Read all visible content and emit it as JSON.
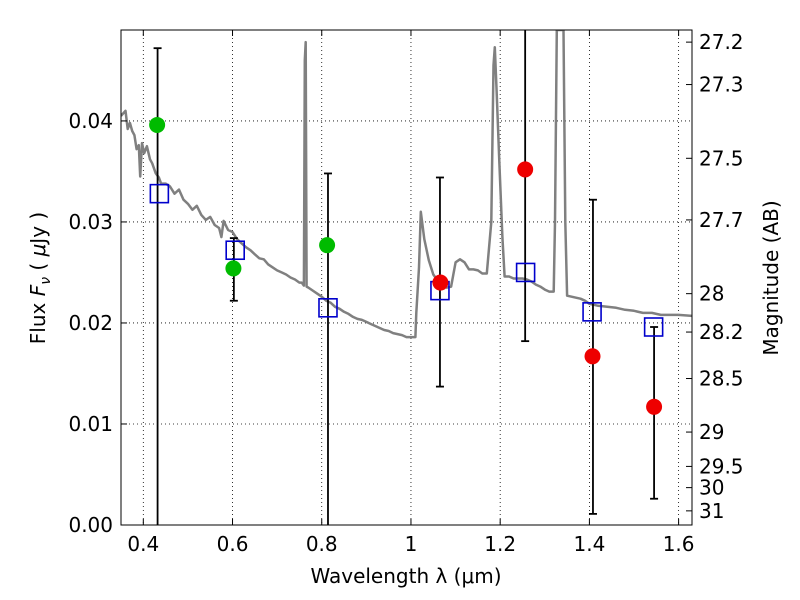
{
  "chart_data": {
    "type": "scatter",
    "title": "",
    "xlabel": "Wavelength  λ (μm)",
    "ylabel": "Flux  F_ν  ( μJy )",
    "y2label": "Magnitude (AB)",
    "xlim": [
      0.35,
      1.63
    ],
    "ylim": [
      0.0,
      0.049
    ],
    "grid": true,
    "x_ticks": [
      0.4,
      0.6,
      0.8,
      1.0,
      1.2,
      1.4,
      1.6
    ],
    "x_tick_labels": [
      "0.4",
      "0.6",
      "0.8",
      "1",
      "1.2",
      "1.4",
      "1.6"
    ],
    "y_ticks": [
      0.0,
      0.01,
      0.02,
      0.03,
      0.04
    ],
    "y_tick_labels": [
      "0.00",
      "0.01",
      "0.02",
      "0.03",
      "0.04"
    ],
    "y2_ticks": [
      {
        "label": "27.2",
        "flux": 0.0478
      },
      {
        "label": "27.3",
        "flux": 0.0436
      },
      {
        "label": "27.5",
        "flux": 0.0363
      },
      {
        "label": "27.7",
        "flux": 0.0302
      },
      {
        "label": "28",
        "flux": 0.0229
      },
      {
        "label": "28.2",
        "flux": 0.0191
      },
      {
        "label": "28.5",
        "flux": 0.0145
      },
      {
        "label": "29",
        "flux": 0.0092
      },
      {
        "label": "29.5",
        "flux": 0.0058
      },
      {
        "label": "30",
        "flux": 0.0037
      },
      {
        "label": "31",
        "flux": 0.0014
      }
    ],
    "series": [
      {
        "kind": "line",
        "color": "#808080",
        "points": [
          [
            0.35,
            0.0405
          ],
          [
            0.36,
            0.041
          ],
          [
            0.365,
            0.0392
          ],
          [
            0.37,
            0.0398
          ],
          [
            0.375,
            0.039
          ],
          [
            0.38,
            0.0386
          ],
          [
            0.385,
            0.0372
          ],
          [
            0.39,
            0.0376
          ],
          [
            0.393,
            0.0345
          ],
          [
            0.397,
            0.0378
          ],
          [
            0.402,
            0.0368
          ],
          [
            0.408,
            0.0375
          ],
          [
            0.415,
            0.0362
          ],
          [
            0.42,
            0.0358
          ],
          [
            0.428,
            0.0348
          ],
          [
            0.435,
            0.0344
          ],
          [
            0.44,
            0.0338
          ],
          [
            0.45,
            0.0338
          ],
          [
            0.46,
            0.0335
          ],
          [
            0.47,
            0.0328
          ],
          [
            0.48,
            0.0332
          ],
          [
            0.49,
            0.0322
          ],
          [
            0.5,
            0.0318
          ],
          [
            0.51,
            0.0312
          ],
          [
            0.52,
            0.0316
          ],
          [
            0.53,
            0.0307
          ],
          [
            0.54,
            0.0302
          ],
          [
            0.55,
            0.0305
          ],
          [
            0.56,
            0.0297
          ],
          [
            0.57,
            0.0294
          ],
          [
            0.575,
            0.0285
          ],
          [
            0.58,
            0.0301
          ],
          [
            0.59,
            0.0292
          ],
          [
            0.6,
            0.029
          ],
          [
            0.61,
            0.0283
          ],
          [
            0.62,
            0.0279
          ],
          [
            0.63,
            0.0275
          ],
          [
            0.64,
            0.0272
          ],
          [
            0.65,
            0.0268
          ],
          [
            0.66,
            0.0264
          ],
          [
            0.67,
            0.0263
          ],
          [
            0.68,
            0.0258
          ],
          [
            0.69,
            0.0255
          ],
          [
            0.7,
            0.0252
          ],
          [
            0.71,
            0.025
          ],
          [
            0.72,
            0.0248
          ],
          [
            0.73,
            0.0245
          ],
          [
            0.74,
            0.0243
          ],
          [
            0.75,
            0.024
          ],
          [
            0.755,
            0.024
          ],
          [
            0.76,
            0.0237
          ],
          [
            0.762,
            0.046
          ],
          [
            0.764,
            0.0478
          ],
          [
            0.766,
            0.0236
          ],
          [
            0.77,
            0.0235
          ],
          [
            0.78,
            0.0232
          ],
          [
            0.79,
            0.0229
          ],
          [
            0.8,
            0.0226
          ],
          [
            0.81,
            0.0222
          ],
          [
            0.82,
            0.022
          ],
          [
            0.83,
            0.0216
          ],
          [
            0.84,
            0.0214
          ],
          [
            0.85,
            0.0211
          ],
          [
            0.86,
            0.0209
          ],
          [
            0.87,
            0.0206
          ],
          [
            0.88,
            0.0204
          ],
          [
            0.89,
            0.0203
          ],
          [
            0.9,
            0.0201
          ],
          [
            0.91,
            0.0199
          ],
          [
            0.92,
            0.0197
          ],
          [
            0.93,
            0.0195
          ],
          [
            0.94,
            0.0193
          ],
          [
            0.95,
            0.0192
          ],
          [
            0.96,
            0.019
          ],
          [
            0.97,
            0.0189
          ],
          [
            0.98,
            0.0188
          ],
          [
            0.99,
            0.0186
          ],
          [
            1.0,
            0.0186
          ],
          [
            1.01,
            0.0186
          ],
          [
            1.012,
            0.021
          ],
          [
            1.018,
            0.0255
          ],
          [
            1.022,
            0.031
          ],
          [
            1.03,
            0.0283
          ],
          [
            1.04,
            0.0262
          ],
          [
            1.05,
            0.0248
          ],
          [
            1.06,
            0.0242
          ],
          [
            1.08,
            0.0235
          ],
          [
            1.09,
            0.0236
          ],
          [
            1.1,
            0.026
          ],
          [
            1.11,
            0.0263
          ],
          [
            1.12,
            0.026
          ],
          [
            1.13,
            0.0253
          ],
          [
            1.14,
            0.0253
          ],
          [
            1.15,
            0.0252
          ],
          [
            1.16,
            0.0249
          ],
          [
            1.17,
            0.0249
          ],
          [
            1.18,
            0.03
          ],
          [
            1.185,
            0.0455
          ],
          [
            1.188,
            0.0473
          ],
          [
            1.192,
            0.043
          ],
          [
            1.198,
            0.036
          ],
          [
            1.205,
            0.0285
          ],
          [
            1.21,
            0.0246
          ],
          [
            1.22,
            0.0246
          ],
          [
            1.23,
            0.0244
          ],
          [
            1.24,
            0.0244
          ],
          [
            1.25,
            0.0244
          ],
          [
            1.26,
            0.0243
          ],
          [
            1.27,
            0.0241
          ],
          [
            1.28,
            0.0238
          ],
          [
            1.29,
            0.0236
          ],
          [
            1.3,
            0.0233
          ],
          [
            1.31,
            0.0231
          ],
          [
            1.32,
            0.0231
          ],
          [
            1.323,
            0.03
          ],
          [
            1.327,
            0.049
          ],
          [
            1.342,
            0.049
          ],
          [
            1.346,
            0.03
          ],
          [
            1.35,
            0.0227
          ],
          [
            1.36,
            0.0226
          ],
          [
            1.37,
            0.0225
          ],
          [
            1.38,
            0.0224
          ],
          [
            1.39,
            0.0222
          ],
          [
            1.4,
            0.0219
          ],
          [
            1.42,
            0.0217
          ],
          [
            1.44,
            0.0216
          ],
          [
            1.46,
            0.0215
          ],
          [
            1.48,
            0.0213
          ],
          [
            1.5,
            0.0212
          ],
          [
            1.52,
            0.021
          ],
          [
            1.54,
            0.021
          ],
          [
            1.56,
            0.0208
          ],
          [
            1.58,
            0.0208
          ],
          [
            1.6,
            0.0208
          ],
          [
            1.63,
            0.0207
          ]
        ]
      },
      {
        "kind": "squares",
        "color": "#0000cc",
        "points": [
          [
            0.436,
            0.0328
          ],
          [
            0.606,
            0.0272
          ],
          [
            0.814,
            0.0215
          ],
          [
            1.065,
            0.0232
          ],
          [
            1.257,
            0.025
          ],
          [
            1.406,
            0.0211
          ],
          [
            1.544,
            0.0196
          ]
        ]
      },
      {
        "kind": "dots",
        "color": "#00bb00",
        "points": [
          [
            0.431,
            0.0396
          ],
          [
            0.602,
            0.0254
          ],
          [
            0.812,
            0.0277
          ]
        ]
      },
      {
        "kind": "dots",
        "color": "#ee0000",
        "points": [
          [
            1.066,
            0.024
          ],
          [
            1.256,
            0.0352
          ],
          [
            1.407,
            0.0167
          ],
          [
            1.545,
            0.0117
          ]
        ]
      }
    ],
    "error_bars": [
      {
        "x": 0.432,
        "low": 0.0,
        "high": 0.0472,
        "lower_shown": false
      },
      {
        "x": 0.603,
        "low": 0.0222,
        "high": 0.0284,
        "lower_shown": true
      },
      {
        "x": 0.814,
        "low": 0.0,
        "high": 0.0348,
        "lower_shown": false
      },
      {
        "x": 1.065,
        "low": 0.0137,
        "high": 0.0344,
        "lower_shown": true
      },
      {
        "x": 1.256,
        "low": 0.0182,
        "high": 0.0495,
        "lower_shown": true
      },
      {
        "x": 1.408,
        "low": 0.0011,
        "high": 0.0322,
        "lower_shown": true
      },
      {
        "x": 1.545,
        "low": 0.0026,
        "high": 0.0196,
        "lower_shown": true
      }
    ]
  }
}
